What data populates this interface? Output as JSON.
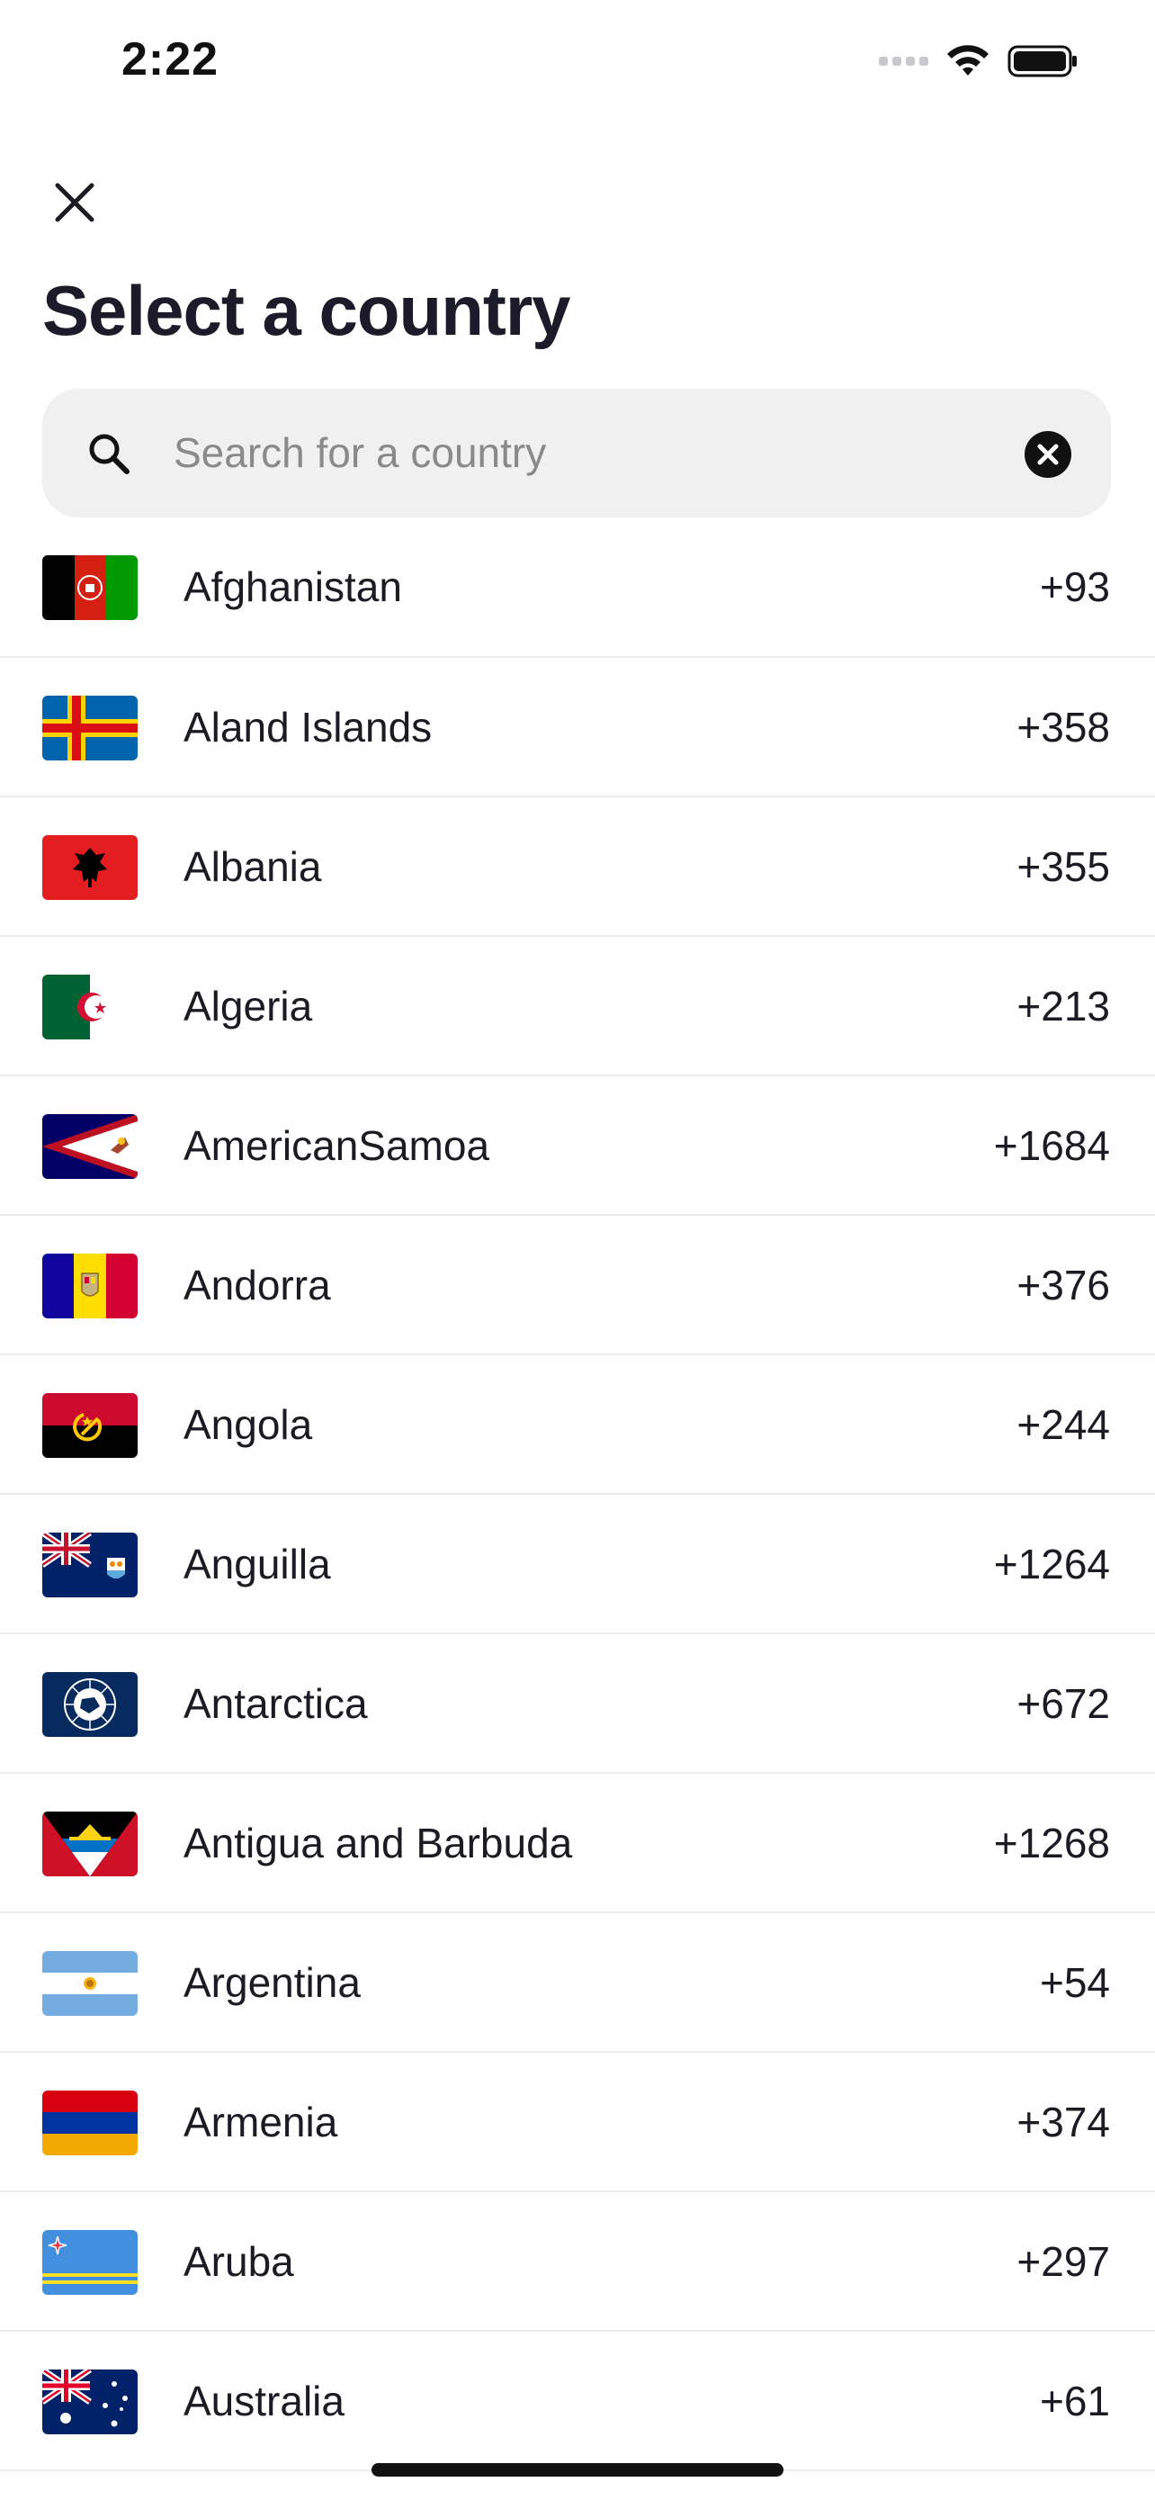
{
  "status_bar": {
    "time": "2:22"
  },
  "header": {
    "title": "Select a country"
  },
  "search": {
    "placeholder": "Search for a country",
    "value": ""
  },
  "countries": [
    {
      "name": "Afghanistan",
      "code": "+93",
      "flag": "afghanistan-flag"
    },
    {
      "name": "Aland Islands",
      "code": "+358",
      "flag": "aland-islands-flag"
    },
    {
      "name": "Albania",
      "code": "+355",
      "flag": "albania-flag"
    },
    {
      "name": "Algeria",
      "code": "+213",
      "flag": "algeria-flag"
    },
    {
      "name": "AmericanSamoa",
      "code": "+1684",
      "flag": "american-samoa-flag"
    },
    {
      "name": "Andorra",
      "code": "+376",
      "flag": "andorra-flag"
    },
    {
      "name": "Angola",
      "code": "+244",
      "flag": "angola-flag"
    },
    {
      "name": "Anguilla",
      "code": "+1264",
      "flag": "anguilla-flag"
    },
    {
      "name": "Antarctica",
      "code": "+672",
      "flag": "antarctica-flag"
    },
    {
      "name": "Antigua and Barbuda",
      "code": "+1268",
      "flag": "antigua-and-barbuda-flag"
    },
    {
      "name": "Argentina",
      "code": "+54",
      "flag": "argentina-flag"
    },
    {
      "name": "Armenia",
      "code": "+374",
      "flag": "armenia-flag"
    },
    {
      "name": "Aruba",
      "code": "+297",
      "flag": "aruba-flag"
    },
    {
      "name": "Australia",
      "code": "+61",
      "flag": "australia-flag"
    }
  ],
  "colors": {
    "title": "#1b1b2a",
    "search_bg": "#f0f0f0",
    "divider": "#ececee",
    "placeholder": "#8a8a8a"
  },
  "icons": {
    "close": "close-icon",
    "search": "search-icon",
    "clear": "clear-icon",
    "wifi": "wifi-icon",
    "battery": "battery-icon",
    "signal": "signal-icon"
  }
}
